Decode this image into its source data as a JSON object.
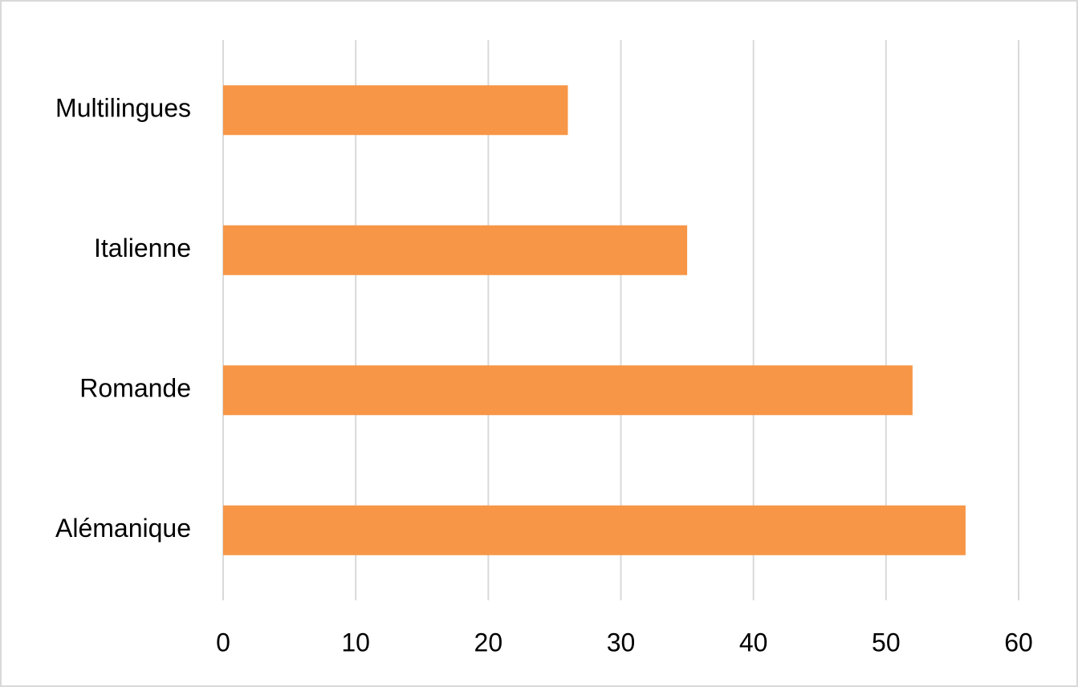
{
  "chart_data": {
    "type": "bar",
    "orientation": "horizontal",
    "categories": [
      "Alémanique",
      "Romande",
      "Italienne",
      "Multilingues"
    ],
    "values": [
      56,
      52,
      35,
      26
    ],
    "color": "#f79646",
    "xlim": [
      0,
      60
    ],
    "xticks": [
      0,
      10,
      20,
      30,
      40,
      50,
      60
    ],
    "grid": true
  }
}
